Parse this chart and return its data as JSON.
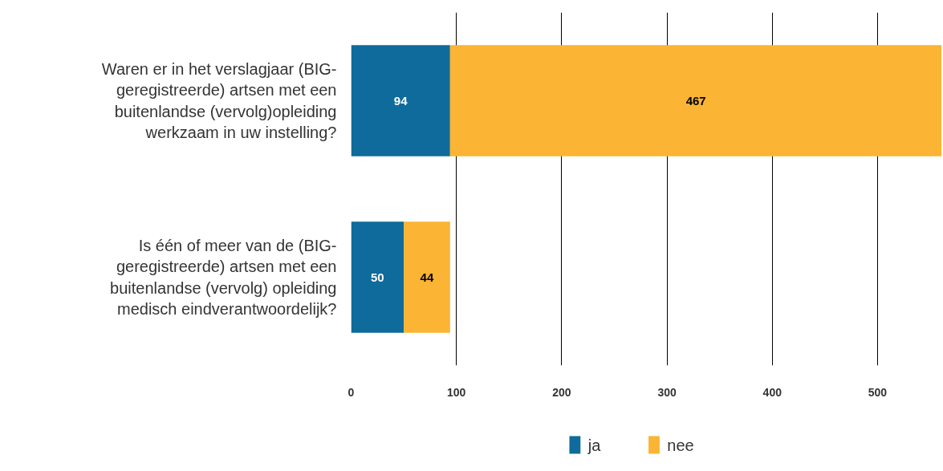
{
  "chart_data": {
    "type": "bar",
    "orientation": "horizontal",
    "stacked": true,
    "categories": [
      "Waren er in het verslagjaar (BIG-geregistreerde) artsen met een buitenlandse (vervolg)opleiding werkzaam in uw instelling?",
      "Is één of meer van de (BIG-geregistreerde) artsen met een buitenlandse (vervolg) opleiding medisch eindverantwoordelijk?"
    ],
    "series": [
      {
        "name": "ja",
        "color": "#0e6b9b",
        "values": [
          94,
          50
        ]
      },
      {
        "name": "nee",
        "color": "#fbb433",
        "values": [
          467,
          44
        ]
      }
    ],
    "xlim": [
      0,
      561
    ],
    "xticks": [
      0,
      100,
      200,
      300,
      400,
      500
    ],
    "grid": "x",
    "legend": "bottom",
    "data_labels": true
  }
}
